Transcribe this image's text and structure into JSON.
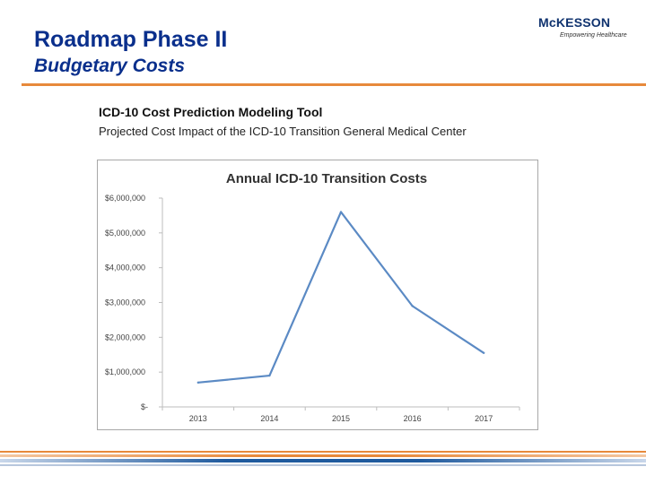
{
  "slide": {
    "title": "Roadmap Phase II",
    "subtitle": "Budgetary Costs"
  },
  "logo": {
    "name": "McKESSON",
    "tagline": "Empowering Healthcare"
  },
  "colors": {
    "title_blue": "#0a2f8c",
    "accent_orange": "#e7893b",
    "series_line": "#5b8ac4",
    "band_blue": "#1f5a9e"
  },
  "report": {
    "heading": "ICD-10 Cost Prediction Modeling Tool",
    "subheading": "Projected Cost Impact of the ICD-10 Transition General Medical Center"
  },
  "chart_data": {
    "type": "line",
    "title": "Annual ICD-10 Transition Costs",
    "xlabel": "",
    "ylabel": "",
    "categories": [
      "2013",
      "2014",
      "2015",
      "2016",
      "2017"
    ],
    "series": [
      {
        "values": [
          700000,
          900000,
          5600000,
          2900000,
          1550000
        ]
      }
    ],
    "ylim": [
      0,
      6000000
    ],
    "yticks": [
      0,
      1000000,
      2000000,
      3000000,
      4000000,
      5000000,
      6000000
    ],
    "ytick_labels": [
      "$-",
      "$1,000,000",
      "$2,000,000",
      "$3,000,000",
      "$4,000,000",
      "$5,000,000",
      "$6,000,000"
    ],
    "grid": false,
    "legend": "none"
  }
}
